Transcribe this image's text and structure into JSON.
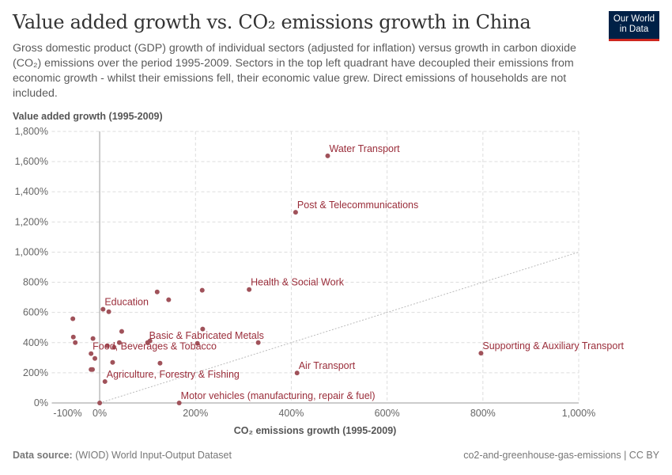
{
  "header": {
    "title": "Value added growth vs. CO₂ emissions growth in China",
    "subtitle": "Gross domestic product (GDP) growth of individual sectors (adjusted for inflation) versus growth in carbon dioxide (CO₂) emissions over the period 1995-2009. Sectors in the top left quadrant have decoupled their emissions from economic growth - whilst their emissions fell, their economic value grew. Direct emissions of households are not included.",
    "logo": "Our World in Data"
  },
  "footer": {
    "source_label": "Data source:",
    "source": "(WIOD) World Input-Output Dataset",
    "right": "co2-and-greenhouse-gas-emissions | CC BY"
  },
  "colors": {
    "point": "#a0525a",
    "label": "#9a2d3a",
    "grid": "#dddddd"
  },
  "chart_data": {
    "type": "scatter",
    "xlabel": "CO₂ emissions growth (1995-2009)",
    "ylabel": "Value added growth (1995-2009)",
    "xlim": [
      -100,
      1000
    ],
    "ylim": [
      0,
      1800
    ],
    "xticks": [
      -100,
      0,
      200,
      400,
      600,
      800,
      1000
    ],
    "xtick_labels": [
      "-100%",
      "0%",
      "200%",
      "400%",
      "600%",
      "800%",
      "1,000%"
    ],
    "yticks": [
      0,
      200,
      400,
      600,
      800,
      1000,
      1200,
      1400,
      1600,
      1800
    ],
    "ytick_labels": [
      "0%",
      "200%",
      "400%",
      "600%",
      "800%",
      "1,000%",
      "1,200%",
      "1,400%",
      "1,600%",
      "1,800%"
    ],
    "grid": true,
    "reference_line": "y = x",
    "points": [
      {
        "x": 476,
        "y": 1638,
        "label": "Water Transport"
      },
      {
        "x": 409,
        "y": 1264,
        "label": "Post & Telecommunications"
      },
      {
        "x": 312,
        "y": 752,
        "label": "Health & Social Work"
      },
      {
        "x": 7,
        "y": 621,
        "label": "Education"
      },
      {
        "x": 100,
        "y": 400,
        "label": "Basic & Fabricated Metals"
      },
      {
        "x": -18,
        "y": 327,
        "label": "Food, Beverages & Tobacco"
      },
      {
        "x": 11,
        "y": 142,
        "label": "Agriculture, Forestry & Fishing"
      },
      {
        "x": 166,
        "y": 0,
        "label": "Motor vehicles (manufacturing, repair & fuel)"
      },
      {
        "x": 796,
        "y": 330,
        "label": "Supporting & Auxiliary Transport"
      },
      {
        "x": 412,
        "y": 199,
        "label": "Air Transport"
      },
      {
        "x": -56,
        "y": 558
      },
      {
        "x": -55,
        "y": 437
      },
      {
        "x": -51,
        "y": 400
      },
      {
        "x": -14,
        "y": 427
      },
      {
        "x": -10,
        "y": 295
      },
      {
        "x": -18,
        "y": 222
      },
      {
        "x": -15,
        "y": 222
      },
      {
        "x": 0,
        "y": 0
      },
      {
        "x": 19,
        "y": 605
      },
      {
        "x": 16,
        "y": 379
      },
      {
        "x": 30,
        "y": 369
      },
      {
        "x": 27,
        "y": 269
      },
      {
        "x": 41,
        "y": 400
      },
      {
        "x": 46,
        "y": 474
      },
      {
        "x": 105,
        "y": 411
      },
      {
        "x": 120,
        "y": 736
      },
      {
        "x": 144,
        "y": 684
      },
      {
        "x": 126,
        "y": 264
      },
      {
        "x": 214,
        "y": 747
      },
      {
        "x": 215,
        "y": 490
      },
      {
        "x": 204,
        "y": 395
      },
      {
        "x": 331,
        "y": 400
      }
    ]
  }
}
